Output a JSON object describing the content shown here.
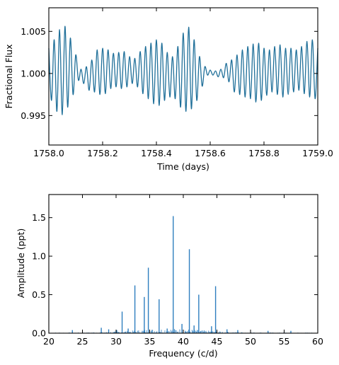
{
  "chart_data": [
    {
      "type": "line",
      "title": "",
      "xlabel": "Time (days)",
      "ylabel": "Fractional Flux",
      "xlim": [
        1758.0,
        1759.0
      ],
      "ylim": [
        0.9915,
        1.0078
      ],
      "xticks": [
        1758.0,
        1758.2,
        1758.4,
        1758.6,
        1758.8,
        1759.0
      ],
      "xtick_labels": [
        "1758.0",
        "1758.2",
        "1758.4",
        "1758.6",
        "1758.8",
        "1759.0"
      ],
      "yticks": [
        0.995,
        1.0,
        1.005
      ],
      "ytick_labels": [
        "0.995",
        "1.000",
        "1.005"
      ],
      "grid": false,
      "series": [
        {
          "color": "#1f6f99",
          "x": [
            1758.0,
            1758.01,
            1758.02,
            1758.03,
            1758.04,
            1758.05,
            1758.06,
            1758.07,
            1758.08,
            1758.09,
            1758.1,
            1758.11,
            1758.12,
            1758.13,
            1758.14,
            1758.15,
            1758.16,
            1758.17,
            1758.18,
            1758.19,
            1758.2,
            1758.21,
            1758.22,
            1758.23,
            1758.24,
            1758.25,
            1758.26,
            1758.27,
            1758.28,
            1758.29,
            1758.3,
            1758.31,
            1758.32,
            1758.33,
            1758.34,
            1758.35,
            1758.36,
            1758.37,
            1758.38,
            1758.39,
            1758.4,
            1758.41,
            1758.42,
            1758.43,
            1758.44,
            1758.45,
            1758.46,
            1758.47,
            1758.48,
            1758.49,
            1758.5,
            1758.51,
            1758.52,
            1758.53,
            1758.54,
            1758.55,
            1758.56,
            1758.57,
            1758.58,
            1758.59,
            1758.6,
            1758.61,
            1758.62,
            1758.63,
            1758.64,
            1758.65,
            1758.66,
            1758.67,
            1758.68,
            1758.69,
            1758.7,
            1758.71,
            1758.72,
            1758.73,
            1758.74,
            1758.75,
            1758.76,
            1758.77,
            1758.78,
            1758.79,
            1758.8,
            1758.81,
            1758.82,
            1758.83,
            1758.84,
            1758.85,
            1758.86,
            1758.87,
            1758.88,
            1758.89,
            1758.9,
            1758.91,
            1758.92,
            1758.93,
            1758.94,
            1758.95,
            1758.96,
            1758.97,
            1758.98,
            1758.99,
            1759.0
          ],
          "y": [
            1.003,
            0.9968,
            1.004,
            0.9955,
            1.0052,
            0.9951,
            1.0056,
            0.996,
            1.0042,
            0.9975,
            1.0022,
            0.9992,
            1.0005,
            0.9988,
            1.0008,
            0.998,
            1.0016,
            0.9978,
            1.0028,
            0.9975,
            1.003,
            0.9976,
            1.0028,
            0.9982,
            1.0024,
            0.9984,
            1.0025,
            0.9982,
            1.0026,
            0.9984,
            1.002,
            0.9988,
            1.0018,
            0.9984,
            1.0026,
            0.9976,
            1.0032,
            0.997,
            1.0036,
            0.9964,
            1.004,
            0.9962,
            1.0036,
            0.9968,
            1.0025,
            0.9972,
            1.002,
            0.997,
            1.0032,
            0.996,
            1.0048,
            0.9955,
            1.0055,
            0.9958,
            1.004,
            0.9968,
            1.002,
            0.9985,
            1.0008,
            0.9998,
            1.0004,
            0.9998,
            1.0003,
            0.9996,
            1.0005,
            0.9995,
            1.0012,
            0.999,
            1.0016,
            0.9978,
            1.0022,
            0.9975,
            1.0028,
            0.9972,
            1.0032,
            0.997,
            1.0035,
            0.9966,
            1.0036,
            0.9968,
            1.003,
            0.9974,
            1.0028,
            0.9978,
            1.0032,
            0.9975,
            1.0034,
            0.9972,
            1.003,
            0.9975,
            1.003,
            0.9978,
            1.0028,
            0.998,
            1.0032,
            0.9976,
            1.0038,
            0.9972,
            1.004,
            0.997,
            1.003
          ]
        }
      ]
    },
    {
      "type": "area",
      "title": "",
      "xlabel": "Frequency (c/d)",
      "ylabel": "Amplitude (ppt)",
      "xlim": [
        20,
        60
      ],
      "ylim": [
        0,
        1.8
      ],
      "xticks": [
        20,
        25,
        30,
        35,
        40,
        45,
        50,
        55,
        60
      ],
      "xtick_labels": [
        "20",
        "25",
        "30",
        "35",
        "40",
        "45",
        "50",
        "55",
        "60"
      ],
      "yticks": [
        0.0,
        0.5,
        1.0,
        1.5
      ],
      "ytick_labels": [
        "0.0",
        "0.5",
        "1.0",
        "1.5"
      ],
      "grid": false,
      "series": [
        {
          "color": "#2f7fbf",
          "peaks": [
            {
              "x": 23.5,
              "y": 0.04
            },
            {
              "x": 27.8,
              "y": 0.07
            },
            {
              "x": 28.9,
              "y": 0.05
            },
            {
              "x": 30.1,
              "y": 0.04
            },
            {
              "x": 30.9,
              "y": 0.28
            },
            {
              "x": 31.8,
              "y": 0.06
            },
            {
              "x": 32.8,
              "y": 0.62
            },
            {
              "x": 34.2,
              "y": 0.47
            },
            {
              "x": 34.8,
              "y": 0.85
            },
            {
              "x": 36.4,
              "y": 0.44
            },
            {
              "x": 37.6,
              "y": 0.06
            },
            {
              "x": 38.5,
              "y": 1.52
            },
            {
              "x": 39.8,
              "y": 0.12
            },
            {
              "x": 40.9,
              "y": 1.09
            },
            {
              "x": 41.6,
              "y": 0.1
            },
            {
              "x": 42.3,
              "y": 0.5
            },
            {
              "x": 44.2,
              "y": 0.09
            },
            {
              "x": 44.8,
              "y": 0.61
            },
            {
              "x": 46.5,
              "y": 0.05
            },
            {
              "x": 48.1,
              "y": 0.04
            },
            {
              "x": 52.6,
              "y": 0.03
            },
            {
              "x": 56.0,
              "y": 0.03
            }
          ]
        }
      ]
    }
  ]
}
